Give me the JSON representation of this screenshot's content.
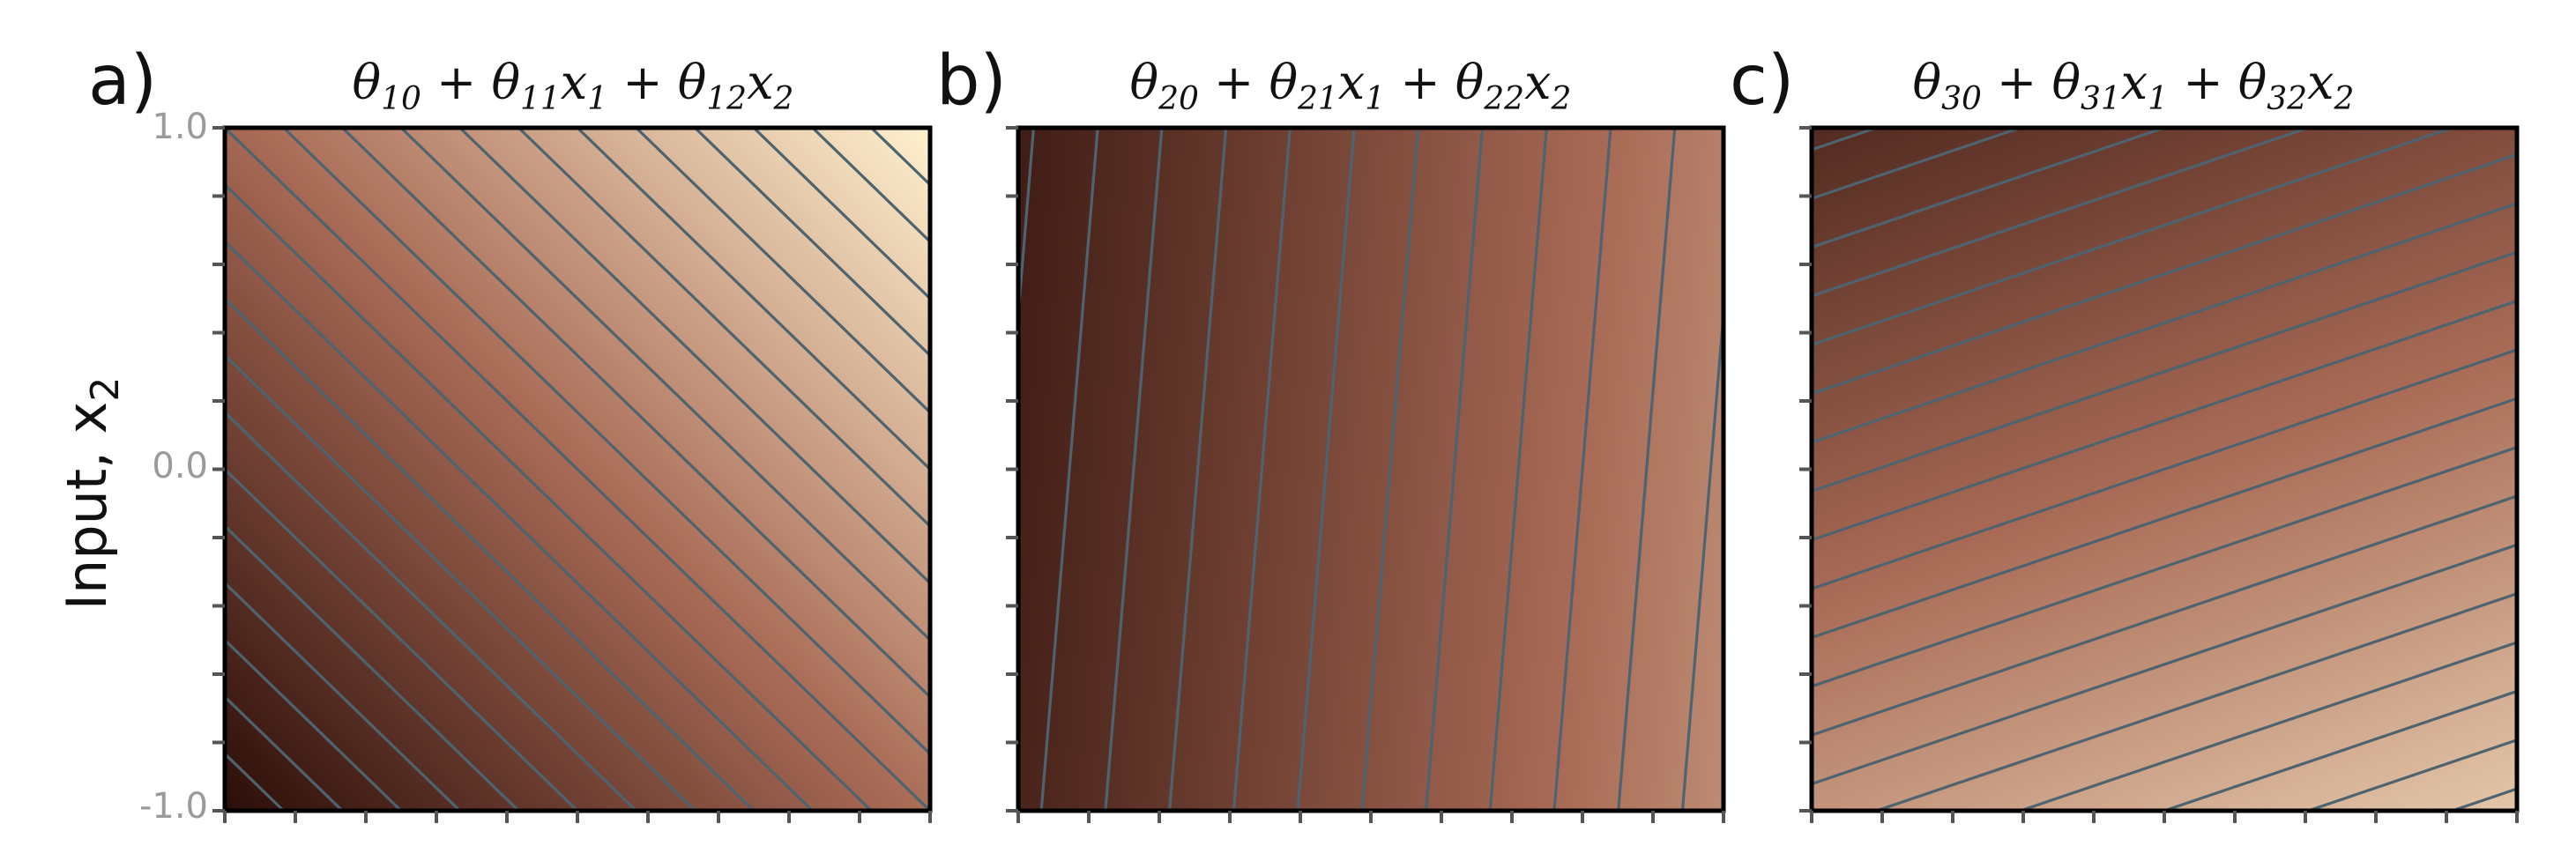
{
  "figure": {
    "ylabel": "Input, x",
    "ylabel_sub": "2",
    "y_tick_labels": [
      "1.0",
      "0.0",
      "-1.0"
    ]
  },
  "colormap": {
    "dark": "#2b0d08",
    "mid": "#a86a55",
    "light": "#fff1cf",
    "contour": "#4d6470"
  },
  "chart_data": [
    {
      "type": "heatmap",
      "letter": "a)",
      "title": {
        "pre": "θ",
        "s1": "10",
        "t1": " + θ",
        "s2": "11",
        "t2": "x",
        "s3": "1",
        "t3": " + θ",
        "s4": "12",
        "t4": "x",
        "s5": "2"
      },
      "formula": "θ10 + θ11 x1 + θ12 x2",
      "xlim": [
        -1.0,
        1.0
      ],
      "ylim": [
        -1.0,
        1.0
      ],
      "coefficients": {
        "intercept": 0.0,
        "x1": 1.0,
        "x2": 1.0
      },
      "value_range": [
        -2.0,
        2.0
      ],
      "contour_count": 24
    },
    {
      "type": "heatmap",
      "letter": "b)",
      "title": {
        "pre": "θ",
        "s1": "20",
        "t1": " + θ",
        "s2": "21",
        "t2": "x",
        "s3": "1",
        "t3": " + θ",
        "s4": "22",
        "t4": "x",
        "s5": "2"
      },
      "formula": "θ20 + θ21 x1 + θ22 x2",
      "xlim": [
        -1.0,
        1.0
      ],
      "ylim": [
        -1.0,
        1.0
      ],
      "coefficients": {
        "intercept": -0.6,
        "x1": 1.0,
        "x2": -0.08
      },
      "value_range": [
        -2.0,
        2.0
      ],
      "contour_count": 22
    },
    {
      "type": "heatmap",
      "letter": "c)",
      "title": {
        "pre": "θ",
        "s1": "30",
        "t1": " + θ",
        "s2": "31",
        "t2": "x",
        "s3": "1",
        "t3": " + θ",
        "s4": "32",
        "t4": "x",
        "s5": "2"
      },
      "formula": "θ30 + θ31 x1 + θ32 x2",
      "xlim": [
        -1.0,
        1.0
      ],
      "ylim": [
        -1.0,
        1.0
      ],
      "coefficients": {
        "intercept": 0.0,
        "x1": 0.35,
        "x2": -1.0
      },
      "value_range": [
        -2.0,
        2.0
      ],
      "contour_count": 28
    }
  ]
}
